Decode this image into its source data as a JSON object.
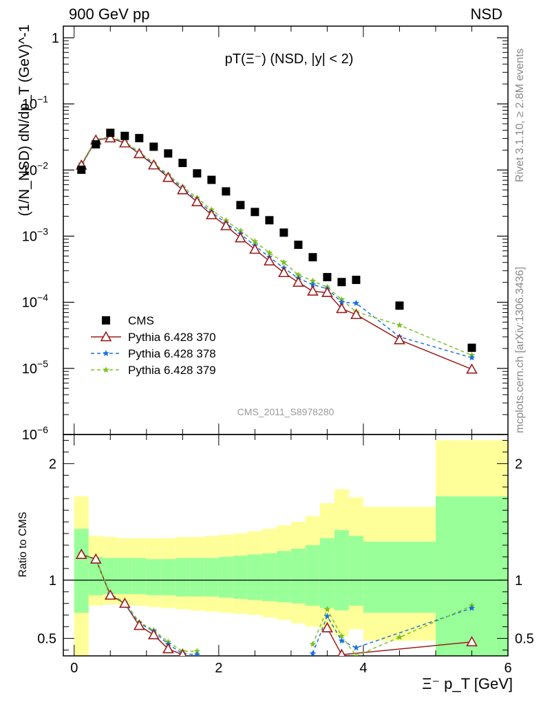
{
  "header": {
    "left": "900 GeV pp",
    "right": "NSD"
  },
  "side": {
    "rivet": "Rivet 3.1.10, ≥ 2.8M events",
    "mcplots": "mcplots.cern.ch [arXiv:1306.3436]"
  },
  "colors": {
    "cms": "#000000",
    "p370": "#9b1b1b",
    "p378": "#1a6fe0",
    "p379": "#7cc21e",
    "band_yellow": "#ffff99",
    "band_green": "#99ff99"
  },
  "chart_data": [
    {
      "type": "scatter",
      "title": "pT(Ξ⁻) (NSD, |y| < 2)",
      "ylabel": "(1/N_NSD) dN/dp_T (GeV)^-1",
      "yscale": "log",
      "ylim": [
        1e-06,
        1.5
      ],
      "xlim": [
        -0.15,
        6.0
      ],
      "yticks": [
        "1",
        "10^-1",
        "10^-2",
        "10^-3",
        "10^-4",
        "10^-5",
        "10^-6"
      ],
      "watermark": "CMS_2011_S8978280",
      "legend_position": "bottom-left",
      "series": [
        {
          "name": "CMS",
          "x": [
            0.1,
            0.3,
            0.5,
            0.7,
            0.9,
            1.1,
            1.3,
            1.5,
            1.7,
            1.9,
            2.1,
            2.3,
            2.5,
            2.7,
            2.9,
            3.1,
            3.3,
            3.5,
            3.7,
            3.9,
            4.5,
            5.5
          ],
          "y": [
            0.0101,
            0.0245,
            0.0365,
            0.0328,
            0.0304,
            0.0225,
            0.0178,
            0.0128,
            0.0089,
            0.0071,
            0.00475,
            0.00295,
            0.00232,
            0.00174,
            0.00113,
            0.00074,
            0.00048,
            0.00024,
            0.000202,
            0.000218,
            8.9e-05,
            2.05e-05
          ]
        },
        {
          "name": "Pythia 6.428 370",
          "x": [
            0.1,
            0.3,
            0.5,
            0.7,
            0.9,
            1.1,
            1.3,
            1.5,
            1.7,
            1.9,
            2.1,
            2.3,
            2.5,
            2.7,
            2.9,
            3.1,
            3.3,
            3.5,
            3.7,
            3.9,
            4.5,
            5.5
          ],
          "y": [
            0.0118,
            0.0283,
            0.0305,
            0.0256,
            0.0176,
            0.0119,
            0.0077,
            0.005,
            0.0033,
            0.0021,
            0.00143,
            0.00094,
            0.00063,
            0.00042,
            0.00028,
            0.0002,
            0.000147,
            0.00014,
            8e-05,
            6.5e-05,
            2.7e-05,
            9.7e-06
          ]
        },
        {
          "name": "Pythia 6.428 378",
          "x": [
            0.1,
            0.3,
            0.5,
            0.7,
            0.9,
            1.1,
            1.3,
            1.5,
            1.7,
            1.9,
            2.1,
            2.3,
            2.5,
            2.7,
            2.9,
            3.1,
            3.3,
            3.5,
            3.7,
            3.9,
            4.5,
            5.5
          ],
          "y": [
            0.0122,
            0.0288,
            0.0312,
            0.0262,
            0.0182,
            0.0124,
            0.0081,
            0.0053,
            0.0035,
            0.0023,
            0.00158,
            0.00108,
            0.00072,
            0.00048,
            0.00033,
            0.00023,
            0.000185,
            0.00016,
            0.0001,
            9.7e-05,
            3e-05,
            1.45e-05
          ]
        },
        {
          "name": "Pythia 6.428 379",
          "x": [
            0.1,
            0.3,
            0.5,
            0.7,
            0.9,
            1.1,
            1.3,
            1.5,
            1.7,
            1.9,
            2.1,
            2.3,
            2.5,
            2.7,
            2.9,
            3.1,
            3.3,
            3.5,
            3.7,
            3.9,
            4.5,
            5.5
          ],
          "y": [
            0.0124,
            0.029,
            0.0318,
            0.0268,
            0.0187,
            0.0128,
            0.0085,
            0.0056,
            0.0038,
            0.0025,
            0.00172,
            0.0012,
            0.00083,
            0.00056,
            0.0004,
            0.00026,
            0.00021,
            0.00017,
            0.00011,
            7.2e-05,
            4.5e-05,
            1.58e-05
          ]
        }
      ]
    },
    {
      "type": "line",
      "ylabel": "Ratio to CMS",
      "xlabel": "Ξ⁻ p_T [GeV]",
      "ylim": [
        0.35,
        2.25
      ],
      "xlim": [
        -0.15,
        6.0
      ],
      "xticks": [
        "0",
        "2",
        "4",
        "6"
      ],
      "yticks": [
        "0.5",
        "1",
        "2"
      ],
      "bands": {
        "edges": [
          0.0,
          0.2,
          0.4,
          0.6,
          0.8,
          1.0,
          1.2,
          1.4,
          1.6,
          1.8,
          2.0,
          2.2,
          2.4,
          2.6,
          2.8,
          3.0,
          3.2,
          3.4,
          3.6,
          3.8,
          4.0,
          5.0,
          6.0
        ],
        "yellow_lo": [
          0.25,
          0.78,
          0.79,
          0.79,
          0.78,
          0.77,
          0.76,
          0.75,
          0.74,
          0.73,
          0.72,
          0.71,
          0.7,
          0.68,
          0.66,
          0.63,
          0.6,
          0.56,
          0.52,
          0.58,
          0.48,
          0.25
        ],
        "yellow_hi": [
          1.72,
          1.38,
          1.37,
          1.36,
          1.36,
          1.36,
          1.36,
          1.37,
          1.37,
          1.38,
          1.39,
          1.4,
          1.42,
          1.44,
          1.47,
          1.5,
          1.55,
          1.66,
          1.78,
          1.71,
          1.63,
          2.2
        ],
        "green_lo": [
          0.72,
          0.87,
          0.88,
          0.88,
          0.88,
          0.87,
          0.87,
          0.86,
          0.86,
          0.86,
          0.85,
          0.84,
          0.83,
          0.82,
          0.81,
          0.8,
          0.78,
          0.76,
          0.74,
          0.78,
          0.72,
          0.25
        ],
        "green_hi": [
          1.44,
          1.2,
          1.19,
          1.19,
          1.19,
          1.18,
          1.18,
          1.19,
          1.19,
          1.19,
          1.2,
          1.21,
          1.22,
          1.23,
          1.25,
          1.27,
          1.3,
          1.36,
          1.43,
          1.38,
          1.33,
          1.72
        ]
      },
      "series": [
        {
          "name": "Pythia 6.428 370",
          "points": [
            [
              0.1,
              1.22
            ],
            [
              0.3,
              1.18
            ],
            [
              0.5,
              0.87
            ],
            [
              0.7,
              0.8
            ],
            [
              0.9,
              0.61
            ],
            [
              1.1,
              0.53
            ],
            [
              1.3,
              0.41
            ],
            [
              1.5,
              0.36
            ],
            [
              3.5,
              0.59
            ],
            [
              3.7,
              0.36
            ],
            [
              5.5,
              0.47
            ]
          ],
          "gaps_after": [
            7
          ]
        },
        {
          "name": "Pythia 6.428 378",
          "points": [
            [
              0.1,
              1.22
            ],
            [
              0.3,
              1.18
            ],
            [
              0.5,
              0.88
            ],
            [
              0.7,
              0.8
            ],
            [
              0.9,
              0.63
            ],
            [
              1.1,
              0.56
            ],
            [
              1.3,
              0.45
            ],
            [
              1.5,
              0.37
            ],
            [
              1.7,
              0.36
            ],
            [
              3.3,
              0.37
            ],
            [
              3.5,
              0.69
            ],
            [
              3.7,
              0.48
            ],
            [
              3.9,
              0.42
            ],
            [
              5.5,
              0.76
            ]
          ],
          "gaps_after": [
            8
          ]
        },
        {
          "name": "Pythia 6.428 379",
          "points": [
            [
              0.1,
              1.23
            ],
            [
              0.3,
              1.18
            ],
            [
              0.5,
              0.88
            ],
            [
              0.7,
              0.81
            ],
            [
              0.9,
              0.64
            ],
            [
              1.1,
              0.57
            ],
            [
              1.3,
              0.47
            ],
            [
              1.5,
              0.39
            ],
            [
              1.7,
              0.39
            ],
            [
              3.3,
              0.45
            ],
            [
              3.5,
              0.75
            ],
            [
              3.7,
              0.52
            ],
            [
              3.9,
              0.35
            ],
            [
              4.5,
              0.51
            ],
            [
              5.5,
              0.78
            ]
          ],
          "gaps_after": [
            8
          ]
        }
      ]
    }
  ]
}
